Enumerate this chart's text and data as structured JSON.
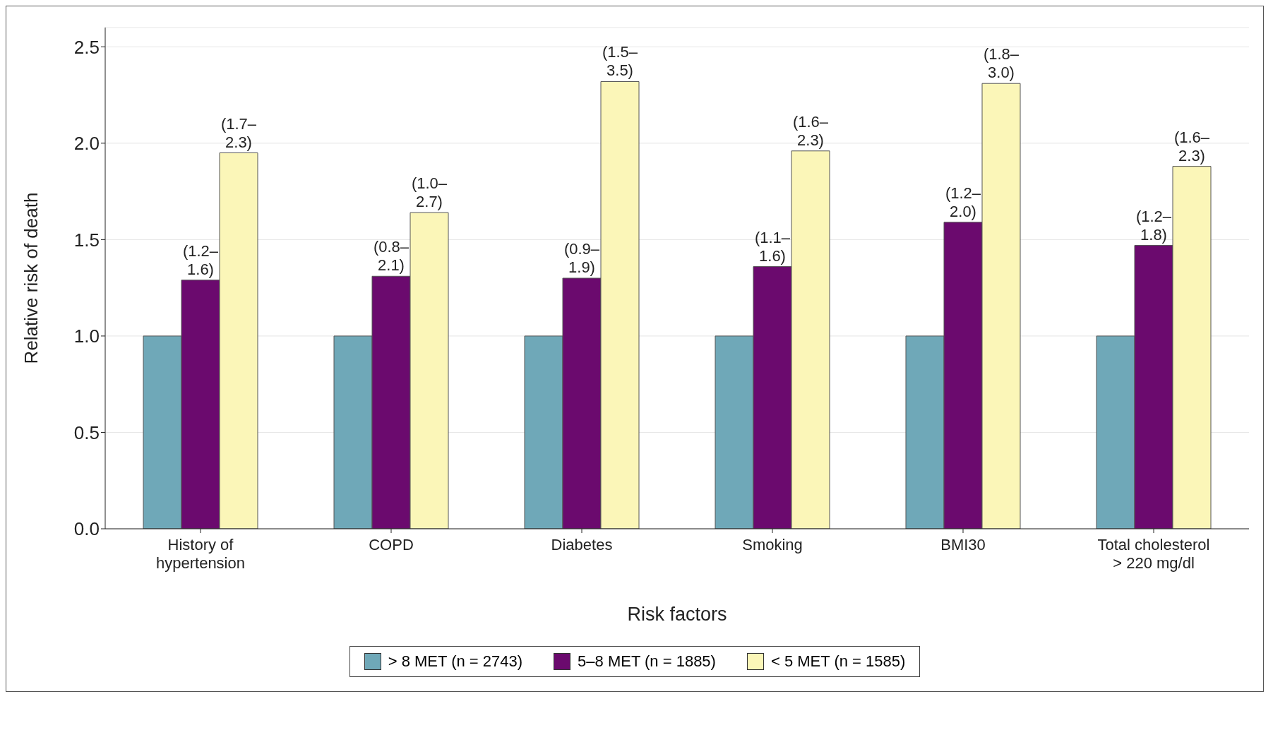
{
  "chart_data": {
    "type": "bar",
    "xlabel": "Risk factors",
    "ylabel": "Relative risk of death",
    "categories": [
      "History of\nhypertension",
      "COPD",
      "Diabetes",
      "Smoking",
      "BMI30",
      "Total cholesterol\n> 220 mg/dl"
    ],
    "series": [
      {
        "name": "> 8 MET (n = 2743)",
        "color": "#6fa8b8",
        "values": [
          1.0,
          1.0,
          1.0,
          1.0,
          1.0,
          1.0
        ]
      },
      {
        "name": "5–8 MET (n = 1885)",
        "color": "#6b0a6e",
        "values": [
          1.29,
          1.31,
          1.3,
          1.36,
          1.59,
          1.47
        ],
        "value_labels": [
          "(1.2–\n1.6)",
          "(0.8–\n2.1)",
          "(0.9–\n1.9)",
          "(1.1–\n1.6)",
          "(1.2–\n2.0)",
          "(1.2–\n1.8)"
        ]
      },
      {
        "name": "< 5 MET (n = 1585)",
        "color": "#fbf6b8",
        "values": [
          1.95,
          1.64,
          2.32,
          1.96,
          2.31,
          1.88
        ],
        "value_labels": [
          "(1.7–\n2.3)",
          "(1.0–\n2.7)",
          "(1.5–\n3.5)",
          "(1.6–\n2.3)",
          "(1.8–\n3.0)",
          "(1.6–\n2.3)"
        ]
      }
    ],
    "ylim": [
      0,
      2.6
    ],
    "yticks": [
      {
        "value": 0,
        "label": "0.0"
      },
      {
        "value": 0.5,
        "label": "0.5"
      },
      {
        "value": 1,
        "label": "1.0"
      },
      {
        "value": 1.5,
        "label": "1.5"
      },
      {
        "value": 2,
        "label": "2.0"
      },
      {
        "value": 2.5,
        "label": "2.5"
      }
    ],
    "grid": "y",
    "legend": "bottom"
  }
}
